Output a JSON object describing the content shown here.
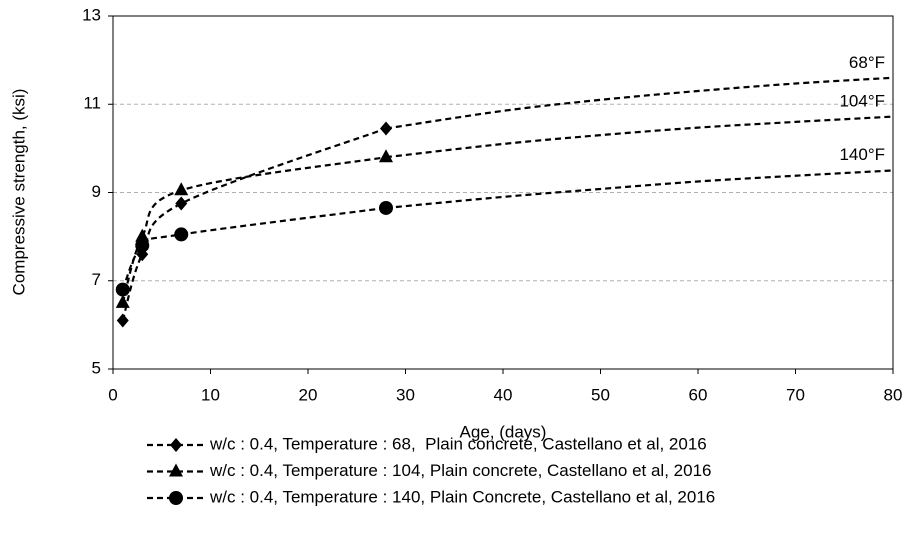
{
  "chart_data": {
    "type": "line",
    "xlabel": "Age, (days)",
    "ylabel": "Compressive strength, (ksi)",
    "xlim": [
      0,
      80
    ],
    "xticks": [
      0,
      10,
      20,
      30,
      40,
      50,
      60,
      70,
      80
    ],
    "ylim": [
      5,
      13
    ],
    "yticks": [
      5,
      7,
      9,
      11,
      13
    ],
    "grid": true,
    "legend": "bottom",
    "annotations": [
      "68°F",
      "104°F",
      "140°F"
    ],
    "series": [
      {
        "name": "w/c : 0.4, Temperature : 68,  Plain concrete, Castellano et al, 2016",
        "color": "#000000",
        "marker": "diamond",
        "x": [
          1,
          3,
          7,
          28
        ],
        "values": [
          6.1,
          7.6,
          8.75,
          10.45
        ],
        "trend_x": [
          28,
          40,
          50,
          60,
          70,
          80
        ],
        "trend_values": [
          10.45,
          10.85,
          11.1,
          11.3,
          11.47,
          11.6
        ]
      },
      {
        "name": "w/c : 0.4, Temperature : 104, Plain concrete, Castellano et al, 2016",
        "color": "#000000",
        "marker": "triangle",
        "x": [
          1,
          3,
          7,
          28
        ],
        "values": [
          6.5,
          8.0,
          9.05,
          9.8
        ],
        "trend_x": [
          28,
          40,
          50,
          60,
          70,
          80
        ],
        "trend_values": [
          9.8,
          10.1,
          10.3,
          10.47,
          10.6,
          10.72
        ]
      },
      {
        "name": "w/c : 0.4, Temperature : 140, Plain Concrete, Castellano et al, 2016",
        "color": "#000000",
        "marker": "circle",
        "x": [
          1,
          3,
          7,
          28
        ],
        "values": [
          6.8,
          7.8,
          8.05,
          8.65
        ],
        "trend_x": [
          28,
          40,
          50,
          60,
          70,
          80
        ],
        "trend_values": [
          8.65,
          8.9,
          9.08,
          9.25,
          9.38,
          9.5
        ]
      }
    ]
  }
}
